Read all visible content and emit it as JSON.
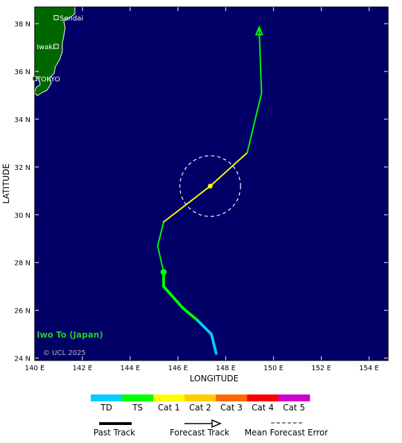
{
  "map": {
    "x_axis_title": "LONGITUDE",
    "y_axis_title": "LATITUDE",
    "lon_ticks": [
      "140 E",
      "142 E",
      "144 E",
      "146 E",
      "148 E",
      "150 E",
      "152 E",
      "154 E"
    ],
    "lat_ticks": [
      "24 N",
      "26 N",
      "28 N",
      "30 N",
      "32 N",
      "34 N",
      "36 N",
      "38 N"
    ],
    "extent": {
      "lon_min": 140,
      "lon_max": 154.8,
      "lat_min": 23.9,
      "lat_max": 38.7
    },
    "ocean_color": "#000066",
    "land_color": "#006600",
    "cities": [
      {
        "name": "Sendai",
        "lon": 140.9,
        "lat": 38.25
      },
      {
        "name": "Iwaki",
        "lon": 140.9,
        "lat": 37.05
      },
      {
        "name": "TOKYO",
        "lon": 140.0,
        "lat": 35.7
      }
    ],
    "area_label": "Iwo To (Japan)",
    "copyright": "© UCL 2025"
  },
  "track": {
    "past": [
      {
        "lon": 147.6,
        "lat": 24.2,
        "cat": "TD"
      },
      {
        "lon": 147.4,
        "lat": 25.0,
        "cat": "TD"
      },
      {
        "lon": 146.8,
        "lat": 25.6,
        "cat": "TD"
      },
      {
        "lon": 146.2,
        "lat": 26.1,
        "cat": "TS"
      },
      {
        "lon": 145.4,
        "lat": 27.0,
        "cat": "TS"
      },
      {
        "lon": 145.4,
        "lat": 27.6,
        "cat": "TS"
      }
    ],
    "forecast": [
      {
        "lon": 145.4,
        "lat": 27.6,
        "cat": "TS"
      },
      {
        "lon": 145.15,
        "lat": 28.7,
        "cat": "TS"
      },
      {
        "lon": 145.4,
        "lat": 29.7,
        "cat": "TS"
      },
      {
        "lon": 147.35,
        "lat": 31.2,
        "cat": "Cat 1"
      },
      {
        "lon": 148.9,
        "lat": 32.6,
        "cat": "Cat 1"
      },
      {
        "lon": 149.5,
        "lat": 35.1,
        "cat": "TS"
      },
      {
        "lon": 149.4,
        "lat": 37.8,
        "cat": "TS"
      }
    ],
    "current_position": {
      "lon": 145.4,
      "lat": 27.6
    },
    "error_circle": {
      "lon": 147.35,
      "lat": 31.2,
      "radius_deg": 1.27
    }
  },
  "legend": {
    "categories": [
      {
        "label": "TD",
        "color": "#00ccff"
      },
      {
        "label": "TS",
        "color": "#00ff00"
      },
      {
        "label": "Cat 1",
        "color": "#ffff00"
      },
      {
        "label": "Cat 2",
        "color": "#ffcc00"
      },
      {
        "label": "Cat 3",
        "color": "#ff6600"
      },
      {
        "label": "Cat 4",
        "color": "#ff0000"
      },
      {
        "label": "Cat 5",
        "color": "#cc00cc"
      }
    ],
    "past_track_label": "Past Track",
    "forecast_track_label": "Forecast Track",
    "error_label": "Mean Forecast Error"
  }
}
